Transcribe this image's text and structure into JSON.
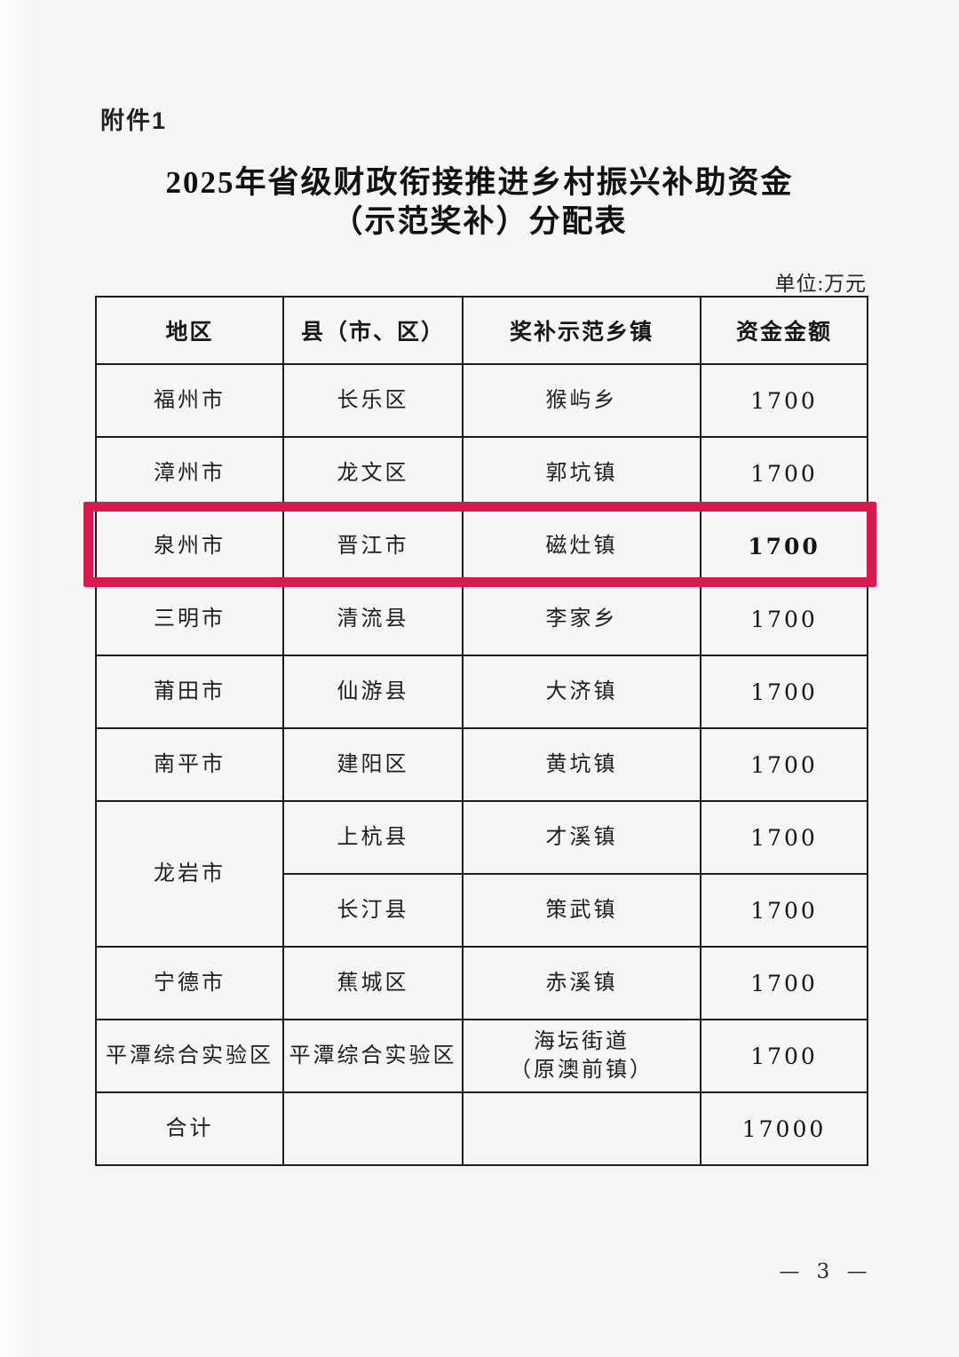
{
  "document": {
    "attachment_label": "附件1",
    "title_lines": [
      "2025年省级财政衔接推进乡村振兴补助资金",
      "（示范奖补）分配表"
    ],
    "unit_note": "单位:万元",
    "page_number": "— 3 —"
  },
  "table": {
    "headers": [
      "地区",
      "县（市、区）",
      "奖补示范乡镇",
      "资金金额"
    ],
    "rows": [
      {
        "region": "福州市",
        "county": "长乐区",
        "town": "猴屿乡",
        "amount": "1700"
      },
      {
        "region": "漳州市",
        "county": "龙文区",
        "town": "郭坑镇",
        "amount": "1700"
      },
      {
        "region": "泉州市",
        "county": "晋江市",
        "town": "磁灶镇",
        "amount": "1700",
        "highlighted": true
      },
      {
        "region": "三明市",
        "county": "清流县",
        "town": "李家乡",
        "amount": "1700"
      },
      {
        "region": "莆田市",
        "county": "仙游县",
        "town": "大济镇",
        "amount": "1700"
      },
      {
        "region": "南平市",
        "county": "建阳区",
        "town": "黄坑镇",
        "amount": "1700"
      },
      {
        "region": "龙岩市",
        "region_rowspan": 2,
        "county": "上杭县",
        "town": "才溪镇",
        "amount": "1700"
      },
      {
        "region": null,
        "county": "长汀县",
        "town": "策武镇",
        "amount": "1700"
      },
      {
        "region": "宁德市",
        "county": "蕉城区",
        "town": "赤溪镇",
        "amount": "1700"
      },
      {
        "region": "平潭综合实验区",
        "county": "平潭综合实验区",
        "town": "海坛街道\n（原澳前镇）",
        "amount": "1700"
      },
      {
        "region": "合计",
        "county": "",
        "town": "",
        "amount": "17000",
        "total": true
      }
    ],
    "highlight": {
      "row_index": 2,
      "color": "#d81b4c"
    }
  }
}
